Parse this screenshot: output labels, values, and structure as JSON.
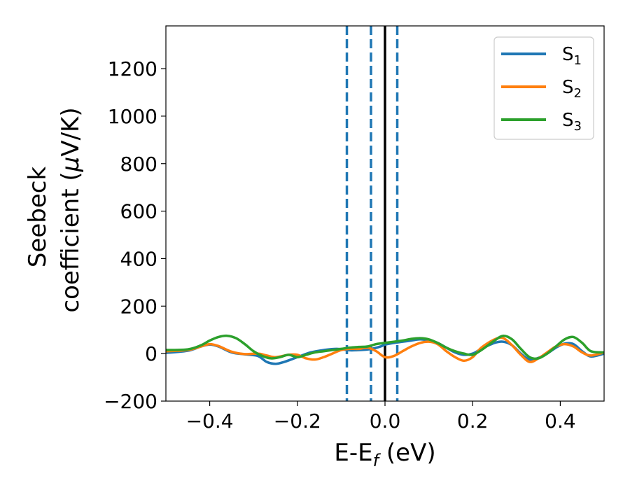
{
  "chart_data": {
    "type": "line",
    "xlabel": {
      "main": "E-E",
      "sub": "f",
      "unit": " (eV)"
    },
    "ylabel": {
      "line1": "Seebeck",
      "line2_prefix": "coefficient  (",
      "mu": "μ",
      "line2_suffix": "V/K)"
    },
    "xlim": [
      -0.5,
      0.5
    ],
    "ylim": [
      -200,
      1380
    ],
    "xticks": [
      -0.4,
      -0.2,
      0.0,
      0.2,
      0.4
    ],
    "xtick_labels": [
      "−0.4",
      "−0.2",
      "0.0",
      "0.2",
      "0.4"
    ],
    "yticks": [
      -200,
      0,
      200,
      400,
      600,
      800,
      1000,
      1200
    ],
    "ytick_labels": [
      "−200",
      "0",
      "200",
      "400",
      "600",
      "800",
      "1000",
      "1200"
    ],
    "grid": false,
    "legend_position": "top-right",
    "vlines": [
      {
        "x": -0.087,
        "style": "dashed",
        "color": "#1f77b4"
      },
      {
        "x": -0.032,
        "style": "dashed",
        "color": "#1f77b4"
      },
      {
        "x": 0.0,
        "style": "solid",
        "color": "#000000"
      },
      {
        "x": 0.028,
        "style": "dashed",
        "color": "#1f77b4"
      }
    ],
    "series": [
      {
        "name": "S",
        "subscript": "1",
        "color": "#1f77b4",
        "x": [
          -0.5,
          -0.45,
          -0.42,
          -0.4,
          -0.38,
          -0.35,
          -0.32,
          -0.29,
          -0.27,
          -0.25,
          -0.23,
          -0.2,
          -0.17,
          -0.14,
          -0.11,
          -0.08,
          -0.05,
          -0.03,
          -0.01,
          0.0,
          0.02,
          0.04,
          0.06,
          0.08,
          0.1,
          0.12,
          0.14,
          0.16,
          0.18,
          0.2,
          0.22,
          0.25,
          0.27,
          0.29,
          0.31,
          0.33,
          0.35,
          0.37,
          0.39,
          0.41,
          0.43,
          0.45,
          0.47,
          0.5
        ],
        "y": [
          3,
          12,
          30,
          38,
          30,
          5,
          -3,
          -10,
          -35,
          -43,
          -35,
          -15,
          5,
          15,
          20,
          14,
          16,
          20,
          30,
          38,
          45,
          50,
          55,
          60,
          55,
          45,
          25,
          5,
          -5,
          0,
          20,
          45,
          50,
          35,
          0,
          -25,
          -18,
          0,
          25,
          42,
          40,
          10,
          -12,
          0
        ]
      },
      {
        "name": "S",
        "subscript": "2",
        "color": "#ff7f0e",
        "x": [
          -0.5,
          -0.45,
          -0.42,
          -0.4,
          -0.38,
          -0.35,
          -0.32,
          -0.29,
          -0.27,
          -0.25,
          -0.22,
          -0.2,
          -0.18,
          -0.16,
          -0.14,
          -0.12,
          -0.1,
          -0.08,
          -0.06,
          -0.04,
          -0.02,
          0.0,
          0.02,
          0.04,
          0.06,
          0.08,
          0.1,
          0.12,
          0.14,
          0.16,
          0.18,
          0.2,
          0.22,
          0.25,
          0.27,
          0.29,
          0.31,
          0.33,
          0.35,
          0.37,
          0.39,
          0.41,
          0.43,
          0.45,
          0.47,
          0.5
        ],
        "y": [
          10,
          15,
          30,
          40,
          32,
          8,
          -2,
          0,
          -8,
          -15,
          -5,
          -5,
          -20,
          -25,
          -15,
          0,
          15,
          20,
          20,
          25,
          10,
          -15,
          -10,
          10,
          30,
          45,
          50,
          40,
          10,
          -15,
          -30,
          -15,
          25,
          60,
          65,
          35,
          -5,
          -35,
          -20,
          5,
          30,
          40,
          30,
          5,
          -8,
          5
        ]
      },
      {
        "name": "S",
        "subscript": "3",
        "color": "#2ca02c",
        "x": [
          -0.5,
          -0.45,
          -0.42,
          -0.4,
          -0.38,
          -0.36,
          -0.34,
          -0.32,
          -0.3,
          -0.28,
          -0.26,
          -0.24,
          -0.22,
          -0.2,
          -0.18,
          -0.16,
          -0.14,
          -0.12,
          -0.1,
          -0.08,
          -0.06,
          -0.04,
          -0.02,
          0.0,
          0.02,
          0.04,
          0.06,
          0.08,
          0.1,
          0.12,
          0.14,
          0.16,
          0.18,
          0.2,
          0.22,
          0.25,
          0.27,
          0.29,
          0.31,
          0.33,
          0.35,
          0.37,
          0.39,
          0.41,
          0.43,
          0.45,
          0.47,
          0.5
        ],
        "y": [
          15,
          18,
          35,
          55,
          70,
          75,
          65,
          40,
          10,
          -10,
          -20,
          -15,
          -5,
          -15,
          -5,
          5,
          10,
          15,
          20,
          25,
          28,
          30,
          40,
          45,
          50,
          55,
          62,
          65,
          60,
          45,
          25,
          10,
          0,
          -5,
          15,
          55,
          75,
          60,
          20,
          -15,
          -20,
          0,
          30,
          60,
          70,
          45,
          10,
          5
        ]
      }
    ]
  }
}
